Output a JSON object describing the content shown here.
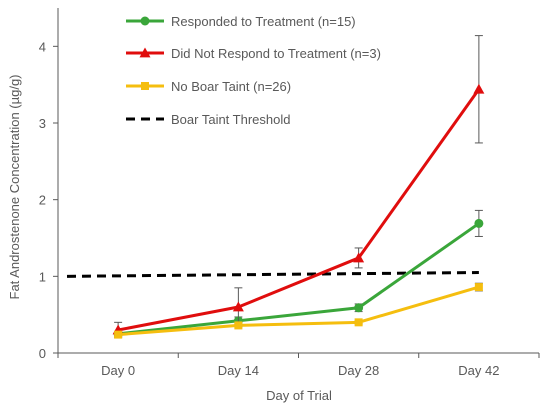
{
  "chart_data": {
    "type": "line",
    "xlabel": "Day of Trial",
    "ylabel": "Fat Androstenone Concentration (µg/g)",
    "categories": [
      "Day 0",
      "Day 14",
      "Day 28",
      "Day 42"
    ],
    "ylim": [
      0,
      4.5
    ],
    "yticks": [
      "0",
      "1",
      "2",
      "3",
      "4"
    ],
    "grid": false,
    "legend_position": "top-left",
    "series": [
      {
        "name": "Responded to Treatment (n=15)",
        "color": "#3aa63a",
        "marker": "circle",
        "values": [
          0.25,
          0.42,
          0.59,
          1.69
        ],
        "error": [
          0.03,
          0.05,
          0.05,
          0.17
        ]
      },
      {
        "name": "Did Not Respond to Treatment (n=3)",
        "color": "#e00d0d",
        "marker": "triangle",
        "values": [
          0.3,
          0.6,
          1.24,
          3.44
        ],
        "error": [
          0.1,
          0.25,
          0.13,
          0.7
        ]
      },
      {
        "name": "No Boar Taint (n=26)",
        "color": "#f5be0f",
        "marker": "square",
        "values": [
          0.24,
          0.36,
          0.4,
          0.86
        ],
        "error": [
          0.02,
          0.02,
          0.02,
          0.05
        ]
      }
    ],
    "threshold": {
      "name": "Boar Taint Threshold",
      "color": "#000000",
      "values": [
        1.0,
        1.05
      ]
    }
  }
}
